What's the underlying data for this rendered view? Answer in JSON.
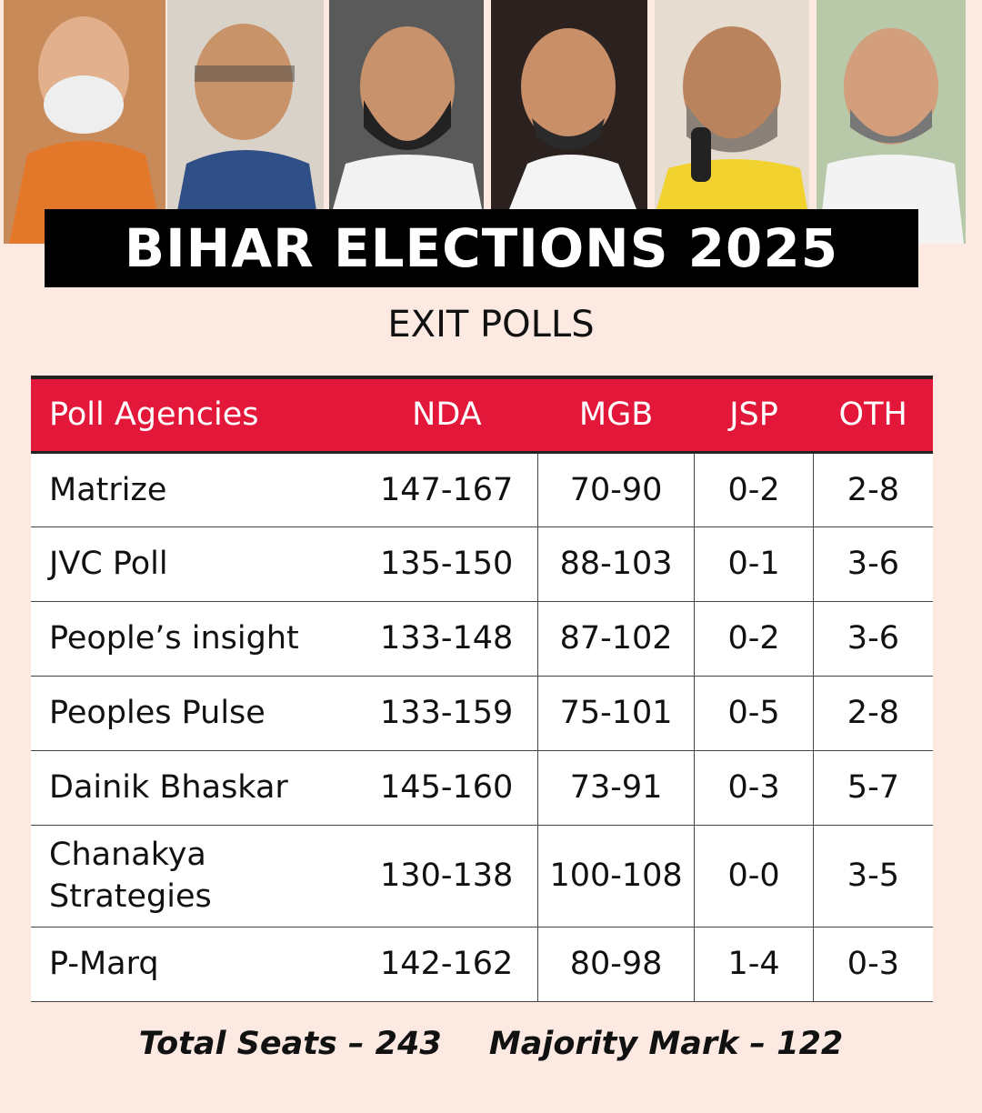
{
  "header": {
    "title": "BIHAR ELECTIONS 2025",
    "subtitle": "EXIT POLLS"
  },
  "table": {
    "columns": [
      "Poll Agencies",
      "NDA",
      "MGB",
      "JSP",
      "OTH"
    ],
    "rows": [
      [
        "Matrize",
        "147-167",
        "70-90",
        "0-2",
        "2-8"
      ],
      [
        "JVC Poll",
        "135-150",
        "88-103",
        "0-1",
        "3-6"
      ],
      [
        "People’s insight",
        "133-148",
        "87-102",
        "0-2",
        "3-6"
      ],
      [
        "Peoples Pulse",
        "133-159",
        "75-101",
        "0-5",
        "2-8"
      ],
      [
        "Dainik Bhaskar",
        "145-160",
        "73-91",
        "0-3",
        "5-7"
      ],
      [
        "Chanakya Strategies",
        "130-138",
        "100-108",
        "0-0",
        "3-5"
      ],
      [
        "P-Marq",
        "142-162",
        "80-98",
        "1-4",
        "0-3"
      ]
    ]
  },
  "footer": {
    "total_seats": "Total Seats – 243",
    "majority_mark": "Majority Mark – 122"
  }
}
